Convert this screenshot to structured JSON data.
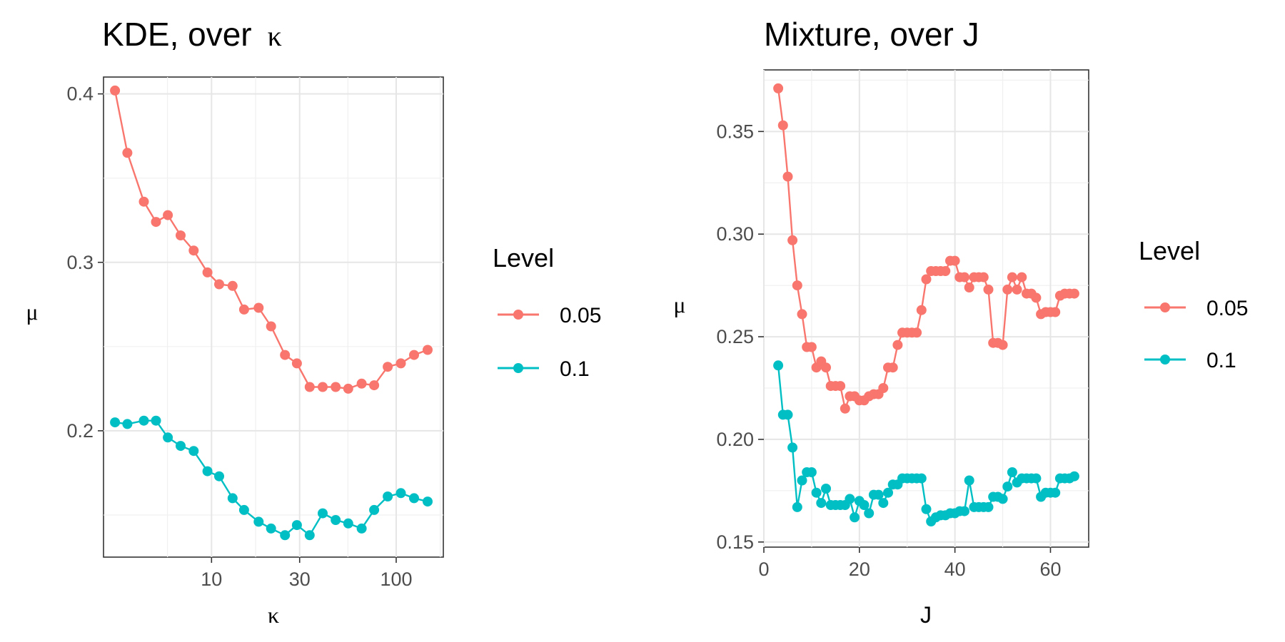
{
  "chart_data": [
    {
      "type": "line",
      "title": "KDE, over",
      "title_symbol": "κ",
      "xlabel": "κ",
      "ylabel": "μ",
      "x_scale": "log",
      "xlim": [
        2.6,
        180
      ],
      "ylim": [
        0.125,
        0.41
      ],
      "x_tick_values": [
        10,
        30,
        100
      ],
      "x_tick_labels": [
        "10",
        "30",
        "100"
      ],
      "y_tick_values": [
        0.2,
        0.3,
        0.4
      ],
      "y_tick_labels": [
        "0.2",
        "0.3",
        "0.4"
      ],
      "grid": true,
      "legend_title": "Level",
      "legend_position": "right",
      "series": [
        {
          "name": "0.05",
          "color": "#F8766D",
          "x": [
            3,
            3.5,
            4.3,
            5,
            5.8,
            6.8,
            8,
            9.5,
            11,
            13,
            15,
            18,
            21,
            25,
            29,
            34,
            40,
            47,
            55,
            65,
            76,
            90,
            106,
            125,
            148
          ],
          "y": [
            0.402,
            0.365,
            0.336,
            0.324,
            0.328,
            0.316,
            0.307,
            0.294,
            0.287,
            0.286,
            0.272,
            0.273,
            0.262,
            0.245,
            0.24,
            0.226,
            0.226,
            0.226,
            0.225,
            0.228,
            0.227,
            0.238,
            0.24,
            0.245,
            0.248
          ]
        },
        {
          "name": "0.1",
          "color": "#00BFC4",
          "x": [
            3,
            3.5,
            4.3,
            5,
            5.8,
            6.8,
            8,
            9.5,
            11,
            13,
            15,
            18,
            21,
            25,
            29,
            34,
            40,
            47,
            55,
            65,
            76,
            90,
            106,
            125,
            148
          ],
          "y": [
            0.205,
            0.204,
            0.206,
            0.206,
            0.196,
            0.191,
            0.188,
            0.176,
            0.173,
            0.16,
            0.153,
            0.146,
            0.142,
            0.138,
            0.144,
            0.138,
            0.151,
            0.147,
            0.145,
            0.142,
            0.153,
            0.161,
            0.163,
            0.16,
            0.158
          ]
        }
      ]
    },
    {
      "type": "line",
      "title": "Mixture, over J",
      "xlabel": "J",
      "ylabel": "μ",
      "x_scale": "linear",
      "xlim": [
        0,
        68
      ],
      "ylim": [
        0.1475,
        0.38
      ],
      "x_tick_values": [
        0,
        20,
        40,
        60
      ],
      "x_tick_labels": [
        "0",
        "20",
        "40",
        "60"
      ],
      "y_tick_values": [
        0.15,
        0.2,
        0.25,
        0.3,
        0.35
      ],
      "y_tick_labels": [
        "0.15",
        "0.20",
        "0.25",
        "0.30",
        "0.35"
      ],
      "grid": true,
      "legend_title": "Level",
      "legend_position": "right",
      "series": [
        {
          "name": "0.05",
          "color": "#F8766D",
          "x": [
            3,
            4,
            5,
            6,
            7,
            8,
            9,
            10,
            11,
            12,
            13,
            14,
            15,
            16,
            17,
            18,
            19,
            20,
            21,
            22,
            23,
            24,
            25,
            26,
            27,
            28,
            29,
            30,
            31,
            32,
            33,
            34,
            35,
            36,
            37,
            38,
            39,
            40,
            41,
            42,
            43,
            44,
            45,
            46,
            47,
            48,
            49,
            50,
            51,
            52,
            53,
            54,
            55,
            56,
            57,
            58,
            59,
            60,
            61,
            62,
            63,
            64,
            65
          ],
          "y": [
            0.371,
            0.353,
            0.328,
            0.297,
            0.275,
            0.261,
            0.245,
            0.245,
            0.235,
            0.238,
            0.235,
            0.226,
            0.226,
            0.226,
            0.215,
            0.221,
            0.221,
            0.219,
            0.219,
            0.221,
            0.222,
            0.222,
            0.225,
            0.235,
            0.235,
            0.246,
            0.252,
            0.252,
            0.252,
            0.252,
            0.263,
            0.278,
            0.282,
            0.282,
            0.282,
            0.282,
            0.287,
            0.287,
            0.279,
            0.279,
            0.274,
            0.279,
            0.279,
            0.279,
            0.273,
            0.247,
            0.247,
            0.246,
            0.273,
            0.279,
            0.273,
            0.279,
            0.271,
            0.271,
            0.269,
            0.261,
            0.262,
            0.262,
            0.262,
            0.27,
            0.271,
            0.271,
            0.271
          ]
        },
        {
          "name": "0.1",
          "color": "#00BFC4",
          "x": [
            3,
            4,
            5,
            6,
            7,
            8,
            9,
            10,
            11,
            12,
            13,
            14,
            15,
            16,
            17,
            18,
            19,
            20,
            21,
            22,
            23,
            24,
            25,
            26,
            27,
            28,
            29,
            30,
            31,
            32,
            33,
            34,
            35,
            36,
            37,
            38,
            39,
            40,
            41,
            42,
            43,
            44,
            45,
            46,
            47,
            48,
            49,
            50,
            51,
            52,
            53,
            54,
            55,
            56,
            57,
            58,
            59,
            60,
            61,
            62,
            63,
            64,
            65
          ],
          "y": [
            0.236,
            0.212,
            0.212,
            0.196,
            0.167,
            0.18,
            0.184,
            0.184,
            0.174,
            0.169,
            0.176,
            0.168,
            0.168,
            0.168,
            0.168,
            0.171,
            0.162,
            0.17,
            0.168,
            0.164,
            0.173,
            0.173,
            0.169,
            0.174,
            0.178,
            0.178,
            0.181,
            0.181,
            0.181,
            0.181,
            0.181,
            0.166,
            0.16,
            0.162,
            0.163,
            0.163,
            0.164,
            0.164,
            0.165,
            0.165,
            0.18,
            0.167,
            0.167,
            0.167,
            0.167,
            0.172,
            0.172,
            0.171,
            0.177,
            0.184,
            0.179,
            0.181,
            0.181,
            0.181,
            0.181,
            0.172,
            0.174,
            0.174,
            0.174,
            0.181,
            0.181,
            0.181,
            0.182
          ]
        }
      ]
    }
  ]
}
